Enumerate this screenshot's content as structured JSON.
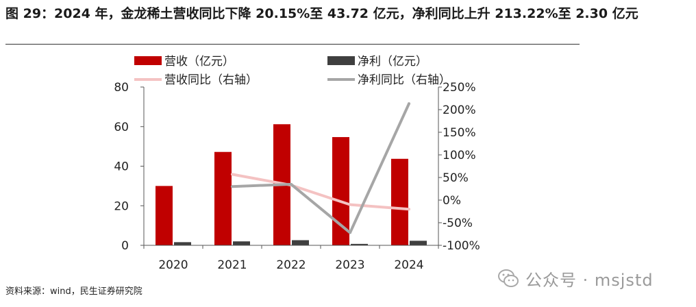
{
  "title": "图 29：2024 年，金龙稀土营收同比下降 20.15%至 43.72 亿元，净利同比上升 213.22%至 2.30 亿元",
  "source": "资料来源：wind，民生证券研究院",
  "watermark": {
    "text": "公众号 · msjstd",
    "icon": "wechat-icon"
  },
  "chart_data": {
    "type": "bar",
    "categories": [
      "2020",
      "2021",
      "2022",
      "2023",
      "2024"
    ],
    "series": [
      {
        "name": "营收（亿元）",
        "kind": "bar",
        "axis": "left",
        "color": "#c00000",
        "values": [
          30.0,
          47.2,
          61.2,
          54.7,
          43.72
        ]
      },
      {
        "name": "净利（亿元）",
        "kind": "bar",
        "axis": "left",
        "color": "#3f3f3f",
        "values": [
          1.6,
          2.0,
          2.6,
          0.73,
          2.3
        ]
      },
      {
        "name": "营收同比（右轴）",
        "kind": "line",
        "axis": "right",
        "color": "#f4c2c2",
        "values": [
          null,
          57,
          33,
          -10,
          -20.15
        ]
      },
      {
        "name": "净利同比（右轴）",
        "kind": "line",
        "axis": "right",
        "color": "#a6a6a6",
        "values": [
          null,
          30,
          35,
          -72,
          213.22
        ]
      }
    ],
    "y_left": {
      "min": 0,
      "max": 80,
      "ticks": [
        0,
        20,
        40,
        60,
        80
      ]
    },
    "y_right": {
      "min": -100,
      "max": 250,
      "ticks": [
        -100,
        -50,
        0,
        50,
        100,
        150,
        200,
        250
      ],
      "tick_labels": [
        "-100%",
        "-50%",
        "0%",
        "50%",
        "100%",
        "150%",
        "200%",
        "250%"
      ]
    },
    "legend_position": "top",
    "grid": false
  }
}
